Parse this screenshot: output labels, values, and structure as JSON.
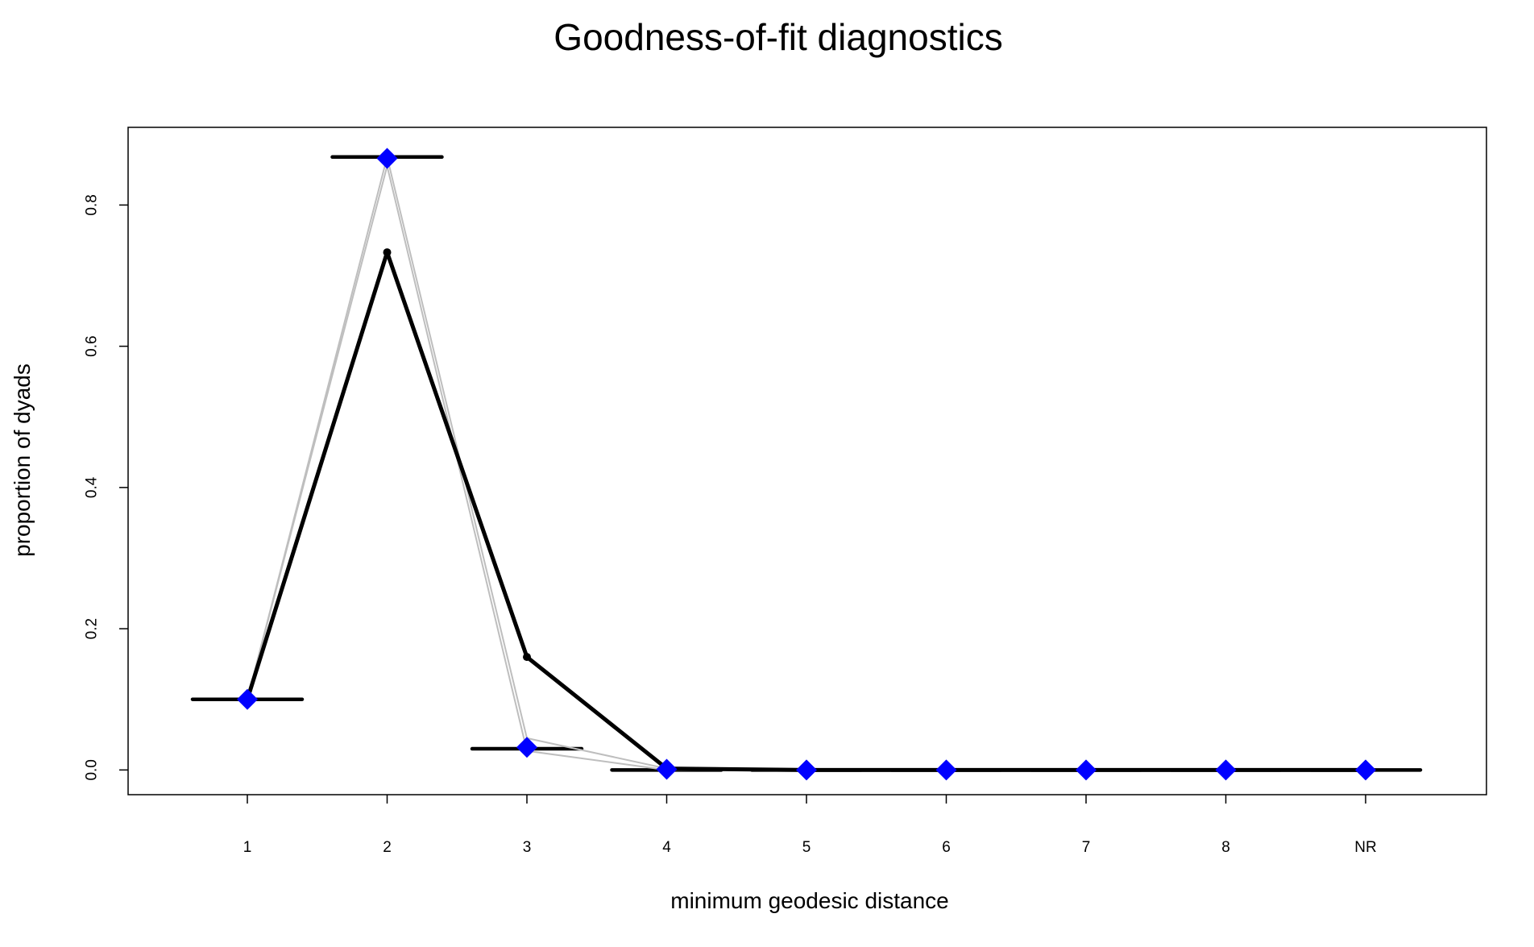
{
  "chart_data": {
    "type": "line",
    "title": "Goodness-of-fit diagnostics",
    "xlabel": "minimum geodesic distance",
    "ylabel": "proportion of dyads",
    "categories": [
      "1",
      "2",
      "3",
      "4",
      "5",
      "6",
      "7",
      "8",
      "NR"
    ],
    "yticks": [
      "0.0",
      "0.2",
      "0.4",
      "0.6",
      "0.8"
    ],
    "ylim": [
      -0.035,
      0.91
    ],
    "grid": false,
    "legend": "none",
    "series": [
      {
        "role": "observed",
        "color": "#000000",
        "values": [
          0.1,
          0.733,
          0.16,
          0.002,
          0.0,
          0.0,
          0.0,
          0.0,
          0.0
        ]
      },
      {
        "role": "simulated-mean",
        "color": "#0000ff",
        "values": [
          0.1,
          0.866,
          0.032,
          0.001,
          0.0,
          0.0,
          0.0,
          0.0,
          0.0
        ]
      },
      {
        "role": "simulated-upper",
        "color": "#bebebe",
        "values": [
          0.1,
          0.868,
          0.045,
          0.002,
          0.0,
          0.0,
          0.0,
          0.0,
          0.0
        ]
      },
      {
        "role": "simulated-lower",
        "color": "#bebebe",
        "values": [
          0.1,
          0.855,
          0.027,
          0.0,
          0.0,
          0.0,
          0.0,
          0.0,
          0.0
        ]
      }
    ],
    "boxplot_medians": [
      0.1,
      0.868,
      0.03,
      0.0,
      0.0,
      0.0,
      0.0,
      0.0,
      0.0
    ]
  }
}
